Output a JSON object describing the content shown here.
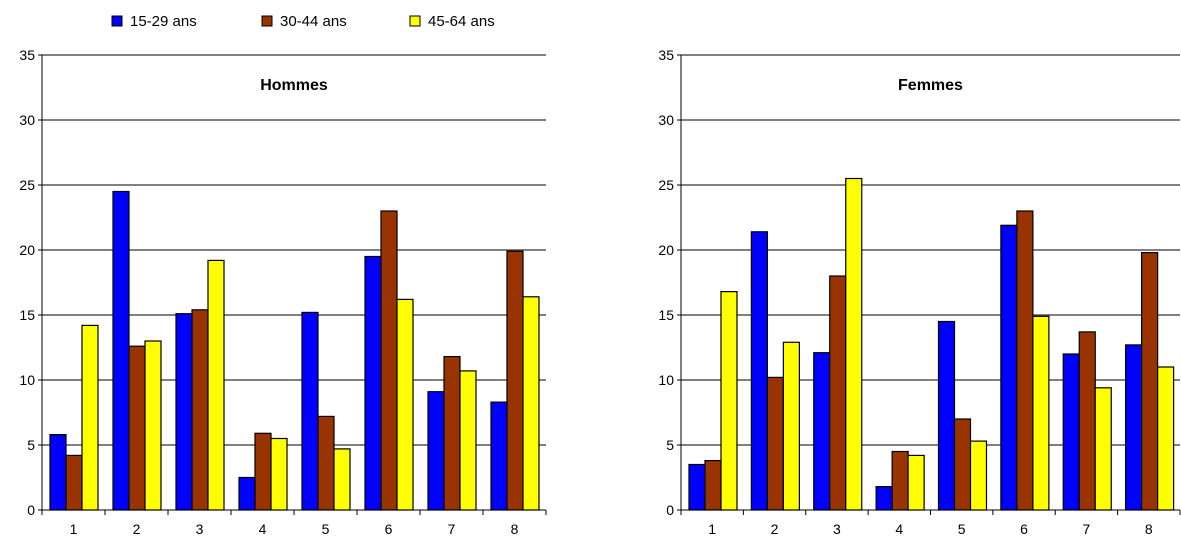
{
  "legend": {
    "placement": "top-left",
    "entries": [
      {
        "label": "15-29 ans",
        "color": "#0000FF"
      },
      {
        "label": "30-44 ans",
        "color": "#993300"
      },
      {
        "label": "45-64 ans",
        "color": "#FFFF00"
      }
    ]
  },
  "chart_data": [
    {
      "type": "bar",
      "title": "Hommes",
      "categories": [
        "1",
        "2",
        "3",
        "4",
        "5",
        "6",
        "7",
        "8"
      ],
      "ylim": [
        0,
        35
      ],
      "yticks": [
        0,
        5,
        10,
        15,
        20,
        25,
        30,
        35
      ],
      "grid": true,
      "series": [
        {
          "name": "15-29 ans",
          "color": "#0000FF",
          "values": [
            5.8,
            24.5,
            15.1,
            2.5,
            15.2,
            19.5,
            9.1,
            8.3
          ]
        },
        {
          "name": "30-44 ans",
          "color": "#993300",
          "values": [
            4.2,
            12.6,
            15.4,
            5.9,
            7.2,
            23.0,
            11.8,
            19.9
          ]
        },
        {
          "name": "45-64 ans",
          "color": "#FFFF00",
          "values": [
            14.2,
            13.0,
            19.2,
            5.5,
            4.7,
            16.2,
            10.7,
            16.4
          ]
        }
      ]
    },
    {
      "type": "bar",
      "title": "Femmes",
      "categories": [
        "1",
        "2",
        "3",
        "4",
        "5",
        "6",
        "7",
        "8"
      ],
      "ylim": [
        0,
        35
      ],
      "yticks": [
        0,
        5,
        10,
        15,
        20,
        25,
        30,
        35
      ],
      "grid": true,
      "series": [
        {
          "name": "15-29 ans",
          "color": "#0000FF",
          "values": [
            3.5,
            21.4,
            12.1,
            1.8,
            14.5,
            21.9,
            12.0,
            12.7
          ]
        },
        {
          "name": "30-44 ans",
          "color": "#993300",
          "values": [
            3.8,
            10.2,
            18.0,
            4.5,
            7.0,
            23.0,
            13.7,
            19.8
          ]
        },
        {
          "name": "45-64 ans",
          "color": "#FFFF00",
          "values": [
            16.8,
            12.9,
            25.5,
            4.2,
            5.3,
            14.9,
            9.4,
            11.0
          ]
        }
      ]
    }
  ]
}
